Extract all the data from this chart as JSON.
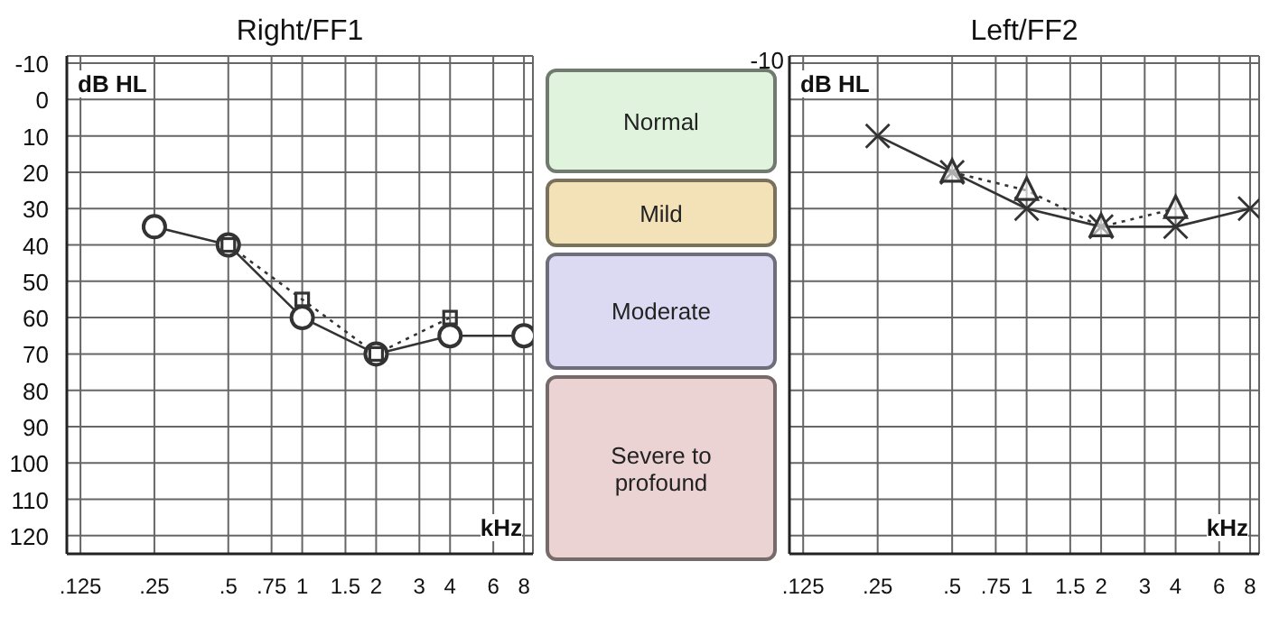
{
  "chart_data": [
    {
      "type": "line",
      "title": "Right/FF1",
      "xlabel": "kHz",
      "ylabel": "dB HL",
      "log": "x",
      "grid": true,
      "xlim": [
        0.11,
        8.7
      ],
      "ylim": [
        125,
        -12
      ],
      "xticks": [
        {
          "value": 0.125,
          "label": ".125"
        },
        {
          "value": 0.25,
          "label": ".25"
        },
        {
          "value": 0.5,
          "label": ".5"
        },
        {
          "value": 0.75,
          "label": ".75"
        },
        1,
        {
          "value": 1.5,
          "label": "1.5"
        },
        2,
        3,
        4,
        6,
        8
      ],
      "yticks": [
        -10,
        0,
        10,
        20,
        30,
        40,
        50,
        60,
        70,
        80,
        90,
        100,
        110,
        120
      ],
      "series": [
        {
          "color": "#333333",
          "marker": "circle",
          "line_style": "solid",
          "x": [
            0.25,
            0.5,
            1,
            2,
            4,
            8
          ],
          "values": [
            35,
            40,
            60,
            70,
            65,
            65
          ]
        },
        {
          "color": "#333333",
          "marker": "square",
          "line_style": "dotted",
          "x": [
            0.5,
            1,
            2,
            4
          ],
          "values": [
            40,
            55,
            70,
            60
          ]
        }
      ]
    },
    {
      "type": "other",
      "categories": [
        "Normal",
        "Mild",
        "Moderate",
        "Severe to\nprofound"
      ],
      "colors": [
        "#e0f3dc",
        "#f3e2b8",
        "#dcdaf3",
        "#ecd3d3"
      ]
    },
    {
      "type": "line",
      "title": "Left/FF2",
      "xlabel": "kHz",
      "ylabel": "dB HL",
      "log": "x",
      "grid": true,
      "xlim": [
        0.11,
        8.7
      ],
      "ylim": [
        125,
        -12
      ],
      "xticks": [
        {
          "value": 0.125,
          "label": ".125"
        },
        {
          "value": 0.25,
          "label": ".25"
        },
        {
          "value": 0.5,
          "label": ".5"
        },
        {
          "value": 0.75,
          "label": ".75"
        },
        1,
        {
          "value": 1.5,
          "label": "1.5"
        },
        2,
        3,
        4,
        6,
        8
      ],
      "yticks": [
        -10,
        0,
        10,
        20,
        30,
        40,
        50,
        60,
        70,
        80,
        90,
        100,
        110,
        120
      ],
      "tick_labels": "x",
      "annotations": [
        "-10"
      ],
      "series": [
        {
          "color": "#333333",
          "marker": "cross",
          "line_style": "solid",
          "x": [
            0.25,
            0.5,
            1,
            2,
            4,
            8
          ],
          "values": [
            10,
            20,
            30,
            35,
            35,
            30
          ]
        },
        {
          "color": "#333333",
          "marker": "triangle",
          "line_style": "dotted",
          "x": [
            0.5,
            1,
            2,
            4
          ],
          "values": [
            20,
            25,
            35,
            30
          ]
        }
      ]
    }
  ]
}
